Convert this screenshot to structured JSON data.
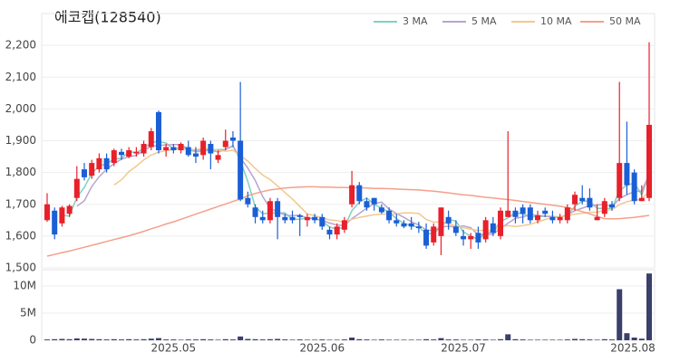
{
  "chart_data": [
    {
      "type": "candlestick",
      "title": "에코캡(128540)",
      "ylim": [
        1500,
        2300
      ],
      "yticks": [
        {
          "value": 1500,
          "label": "1,500"
        },
        {
          "value": 1600,
          "label": "1,600"
        },
        {
          "value": 1700,
          "label": "1,700"
        },
        {
          "value": 1800,
          "label": "1,800"
        },
        {
          "value": 1900,
          "label": "1,900"
        },
        {
          "value": 2000,
          "label": "2,000"
        },
        {
          "value": 2100,
          "label": "2,100"
        },
        {
          "value": 2200,
          "label": "2,200"
        }
      ],
      "grid": true,
      "legend": "top-right",
      "up_color": "#e8202a",
      "down_color": "#1a5fd6",
      "open": [
        1650,
        1680,
        1640,
        1670,
        1720,
        1810,
        1790,
        1810,
        1845,
        1830,
        1865,
        1850,
        1860,
        1860,
        1880,
        1990,
        1870,
        1880,
        1870,
        1880,
        1860,
        1855,
        1890,
        1840,
        1880,
        1910,
        1900,
        1720,
        1690,
        1660,
        1650,
        1710,
        1660,
        1660,
        1665,
        1650,
        1660,
        1660,
        1620,
        1605,
        1620,
        1700,
        1760,
        1710,
        1720,
        1690,
        1680,
        1650,
        1640,
        1640,
        1630,
        1620,
        1580,
        1600,
        1660,
        1630,
        1600,
        1590,
        1610,
        1590,
        1640,
        1600,
        1660,
        1680,
        1690,
        1690,
        1650,
        1680,
        1660,
        1650,
        1650,
        1700,
        1720,
        1720,
        1650,
        1670,
        1700,
        1720,
        1830,
        1800,
        1710,
        1720
      ],
      "high": [
        1735,
        1690,
        1695,
        1700,
        1820,
        1830,
        1840,
        1860,
        1860,
        1875,
        1875,
        1880,
        1880,
        1900,
        1940,
        1995,
        1890,
        1890,
        1895,
        1900,
        1880,
        1910,
        1900,
        1870,
        1935,
        1930,
        2085,
        1740,
        1700,
        1680,
        1720,
        1720,
        1670,
        1680,
        1670,
        1670,
        1670,
        1670,
        1630,
        1640,
        1660,
        1805,
        1770,
        1720,
        1720,
        1700,
        1690,
        1670,
        1650,
        1660,
        1645,
        1640,
        1640,
        1690,
        1680,
        1650,
        1620,
        1610,
        1630,
        1660,
        1660,
        1690,
        1930,
        1690,
        1700,
        1700,
        1680,
        1690,
        1680,
        1670,
        1700,
        1740,
        1760,
        1750,
        1700,
        1720,
        1710,
        2085,
        1960,
        1810,
        1760,
        2210
      ],
      "low": [
        1645,
        1590,
        1630,
        1660,
        1710,
        1775,
        1780,
        1800,
        1800,
        1820,
        1840,
        1845,
        1850,
        1850,
        1870,
        1860,
        1850,
        1860,
        1860,
        1850,
        1830,
        1840,
        1810,
        1830,
        1870,
        1880,
        1710,
        1690,
        1640,
        1640,
        1640,
        1590,
        1640,
        1640,
        1600,
        1630,
        1640,
        1620,
        1590,
        1590,
        1610,
        1690,
        1700,
        1680,
        1680,
        1670,
        1640,
        1630,
        1625,
        1620,
        1610,
        1560,
        1570,
        1540,
        1620,
        1600,
        1570,
        1560,
        1560,
        1580,
        1600,
        1590,
        1660,
        1640,
        1640,
        1640,
        1640,
        1660,
        1640,
        1640,
        1640,
        1680,
        1700,
        1680,
        1650,
        1660,
        1680,
        1710,
        1730,
        1700,
        1710,
        1710
      ],
      "close": [
        1700,
        1605,
        1690,
        1695,
        1780,
        1785,
        1830,
        1845,
        1810,
        1870,
        1855,
        1870,
        1865,
        1890,
        1930,
        1870,
        1880,
        1870,
        1890,
        1855,
        1850,
        1900,
        1860,
        1855,
        1900,
        1900,
        1715,
        1700,
        1660,
        1650,
        1710,
        1660,
        1650,
        1650,
        1660,
        1660,
        1650,
        1630,
        1605,
        1630,
        1650,
        1760,
        1710,
        1690,
        1700,
        1675,
        1650,
        1640,
        1630,
        1630,
        1625,
        1570,
        1630,
        1690,
        1640,
        1610,
        1590,
        1600,
        1580,
        1650,
        1610,
        1680,
        1680,
        1660,
        1670,
        1650,
        1665,
        1670,
        1650,
        1660,
        1690,
        1730,
        1710,
        1690,
        1660,
        1710,
        1690,
        1830,
        1760,
        1710,
        1720,
        1950
      ],
      "series": [
        {
          "name": "3 MA",
          "color": "#7fd1c1",
          "values": [
            null,
            null,
            1665,
            1663,
            1722,
            1753,
            1798,
            1820,
            1828,
            1842,
            1845,
            1865,
            1863,
            1875,
            1895,
            1897,
            1893,
            1873,
            1880,
            1872,
            1865,
            1868,
            1870,
            1872,
            1872,
            1885,
            1838,
            1772,
            1692,
            1670,
            1673,
            1673,
            1673,
            1653,
            1653,
            1657,
            1657,
            1647,
            1628,
            1622,
            1628,
            1680,
            1707,
            1720,
            1700,
            1688,
            1675,
            1655,
            1640,
            1633,
            1628,
            1608,
            1608,
            1630,
            1653,
            1647,
            1613,
            1600,
            1590,
            1610,
            1613,
            1647,
            1657,
            1673,
            1670,
            1660,
            1662,
            1662,
            1662,
            1660,
            1667,
            1693,
            1710,
            1710,
            1687,
            1687,
            1687,
            1743,
            1760,
            1767,
            1730,
            1793
          ]
        },
        {
          "name": "5 MA",
          "color": "#b9a4d0",
          "values": [
            null,
            null,
            null,
            null,
            1694,
            1711,
            1756,
            1787,
            1810,
            1828,
            1842,
            1850,
            1854,
            1870,
            1882,
            1885,
            1887,
            1888,
            1888,
            1873,
            1869,
            1873,
            1871,
            1864,
            1873,
            1883,
            1846,
            1814,
            1775,
            1725,
            1687,
            1676,
            1666,
            1664,
            1666,
            1656,
            1654,
            1650,
            1641,
            1635,
            1633,
            1655,
            1671,
            1688,
            1702,
            1707,
            1685,
            1671,
            1659,
            1645,
            1635,
            1619,
            1617,
            1629,
            1631,
            1628,
            1632,
            1626,
            1604,
            1606,
            1606,
            1624,
            1640,
            1656,
            1660,
            1668,
            1665,
            1663,
            1661,
            1659,
            1667,
            1680,
            1688,
            1696,
            1698,
            1700,
            1692,
            1718,
            1730,
            1740,
            1742,
            1794
          ]
        },
        {
          "name": "10 MA",
          "color": "#f2c88f",
          "values": [
            null,
            null,
            null,
            null,
            null,
            null,
            null,
            null,
            null,
            1761,
            1777,
            1803,
            1820,
            1840,
            1855,
            1864,
            1869,
            1872,
            1874,
            1873,
            1872,
            1875,
            1874,
            1870,
            1867,
            1870,
            1853,
            1836,
            1813,
            1792,
            1778,
            1758,
            1737,
            1717,
            1693,
            1670,
            1664,
            1657,
            1651,
            1649,
            1643,
            1653,
            1659,
            1663,
            1667,
            1669,
            1669,
            1670,
            1673,
            1673,
            1671,
            1652,
            1644,
            1644,
            1638,
            1632,
            1626,
            1622,
            1617,
            1619,
            1617,
            1628,
            1633,
            1630,
            1633,
            1637,
            1645,
            1652,
            1659,
            1660,
            1664,
            1669,
            1672,
            1675,
            1675,
            1681,
            1683,
            1699,
            1708,
            1713,
            1716,
            1742
          ]
        },
        {
          "name": "50 MA",
          "color": "#f4a08a",
          "values": [
            1537,
            1542,
            1548,
            1553,
            1559,
            1565,
            1571,
            1577,
            1583,
            1589,
            1595,
            1601,
            1608,
            1615,
            1623,
            1630,
            1638,
            1645,
            1653,
            1661,
            1669,
            1677,
            1685,
            1693,
            1701,
            1709,
            1717,
            1727,
            1734,
            1740,
            1745,
            1748,
            1751,
            1753,
            1754,
            1755,
            1755,
            1754,
            1754,
            1753,
            1753,
            1752,
            1752,
            1751,
            1750,
            1750,
            1749,
            1748,
            1747,
            1746,
            1745,
            1743,
            1741,
            1739,
            1736,
            1733,
            1730,
            1728,
            1725,
            1722,
            1720,
            1717,
            1715,
            1712,
            1709,
            1706,
            1703,
            1700,
            1697,
            1694,
            1690,
            1684,
            1677,
            1670,
            1662,
            1655,
            1654,
            1655,
            1657,
            1659,
            1662,
            1665
          ]
        }
      ]
    },
    {
      "type": "bar",
      "color": "#3b3f6b",
      "categories": [
        null,
        null,
        null,
        null,
        null,
        null,
        null,
        null,
        null,
        null,
        null,
        null,
        null,
        null,
        null,
        null,
        null,
        "2025.05",
        null,
        null,
        null,
        null,
        null,
        null,
        null,
        null,
        null,
        null,
        null,
        null,
        null,
        null,
        null,
        null,
        null,
        null,
        null,
        "2025.06",
        null,
        null,
        null,
        null,
        null,
        null,
        null,
        null,
        null,
        null,
        null,
        null,
        null,
        null,
        null,
        null,
        null,
        null,
        "2025.07",
        null,
        null,
        null,
        null,
        null,
        null,
        null,
        null,
        null,
        null,
        null,
        null,
        null,
        null,
        null,
        null,
        null,
        null,
        null,
        null,
        null,
        null,
        null,
        null,
        "2025.08"
      ],
      "values": [
        150000,
        200000,
        250000,
        200000,
        350000,
        300000,
        250000,
        200000,
        150000,
        200000,
        150000,
        200000,
        150000,
        200000,
        300000,
        400000,
        150000,
        150000,
        100000,
        150000,
        150000,
        200000,
        150000,
        100000,
        200000,
        150000,
        700000,
        250000,
        200000,
        150000,
        200000,
        250000,
        150000,
        100000,
        150000,
        100000,
        100000,
        150000,
        100000,
        100000,
        150000,
        500000,
        200000,
        150000,
        100000,
        150000,
        100000,
        100000,
        100000,
        100000,
        100000,
        200000,
        150000,
        400000,
        150000,
        150000,
        100000,
        100000,
        150000,
        150000,
        100000,
        200000,
        1100000,
        200000,
        150000,
        100000,
        100000,
        100000,
        100000,
        100000,
        150000,
        250000,
        200000,
        150000,
        100000,
        200000,
        150000,
        9400000,
        1300000,
        500000,
        300000,
        12300000
      ],
      "ylim": [
        0,
        13000000
      ],
      "yticks": [
        0,
        {
          "value": 5000000,
          "label": "5M"
        },
        {
          "value": 10000000,
          "label": "10M"
        }
      ]
    }
  ]
}
